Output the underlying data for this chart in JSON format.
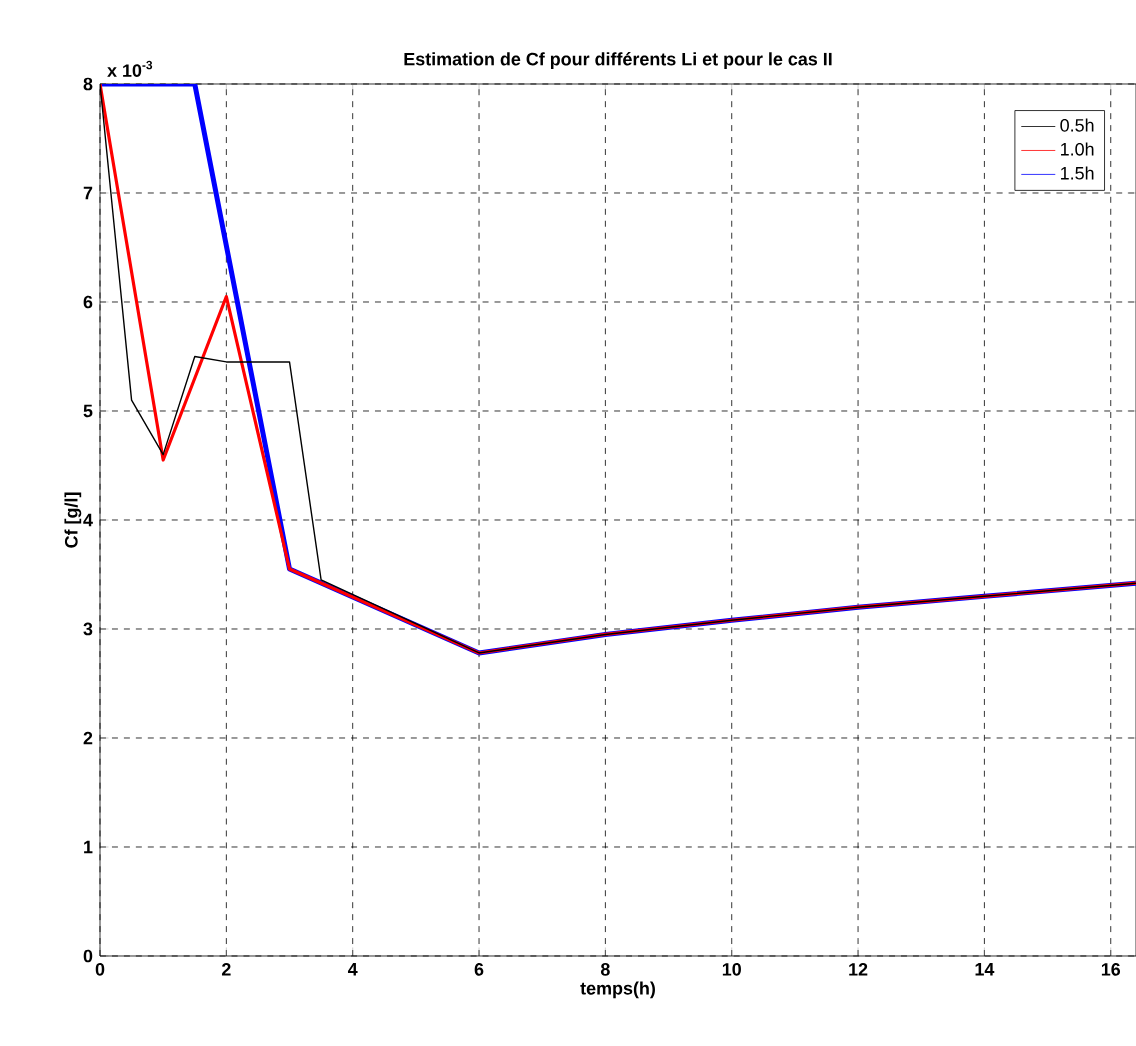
{
  "chart_data": {
    "type": "line",
    "title": "Estimation de Cf pour différents Li et pour le cas II",
    "xlabel": "temps(h)",
    "ylabel": "Cf [g/l]",
    "annotations": [
      "x 10$^{-3}$"
    ],
    "xlim": [
      0,
      16.4
    ],
    "ylim": [
      0,
      8
    ],
    "xticks": [
      0,
      2,
      4,
      6,
      8,
      10,
      12,
      14,
      16
    ],
    "yticks": [
      0,
      1,
      2,
      3,
      4,
      5,
      6,
      7,
      8
    ],
    "grid": true,
    "legend": "top right",
    "marker": "none",
    "line_style": "solid",
    "series": [
      {
        "name": "0.5h",
        "color": "#000000",
        "x": [
          0,
          0.5,
          1,
          1.5,
          2,
          3,
          3.5,
          6,
          8,
          10,
          12,
          14,
          16.4
        ],
        "values": [
          8,
          5.1,
          4.6,
          5.5,
          5.45,
          5.45,
          3.45,
          2.78,
          2.95,
          3.08,
          3.2,
          3.3,
          3.42
        ]
      },
      {
        "name": "1.0h",
        "color": "#ff0000",
        "x": [
          0,
          1,
          2,
          3,
          6,
          8,
          10,
          12,
          14,
          16.4
        ],
        "values": [
          8,
          4.55,
          6.05,
          3.55,
          2.78,
          2.95,
          3.08,
          3.2,
          3.3,
          3.42
        ]
      },
      {
        "name": "1.5h",
        "color": "#0000ff",
        "x": [
          0,
          1.5,
          3,
          6,
          8,
          10,
          12,
          14,
          16.4
        ],
        "values": [
          8,
          8,
          3.55,
          2.78,
          2.95,
          3.08,
          3.2,
          3.3,
          3.42
        ]
      }
    ]
  }
}
